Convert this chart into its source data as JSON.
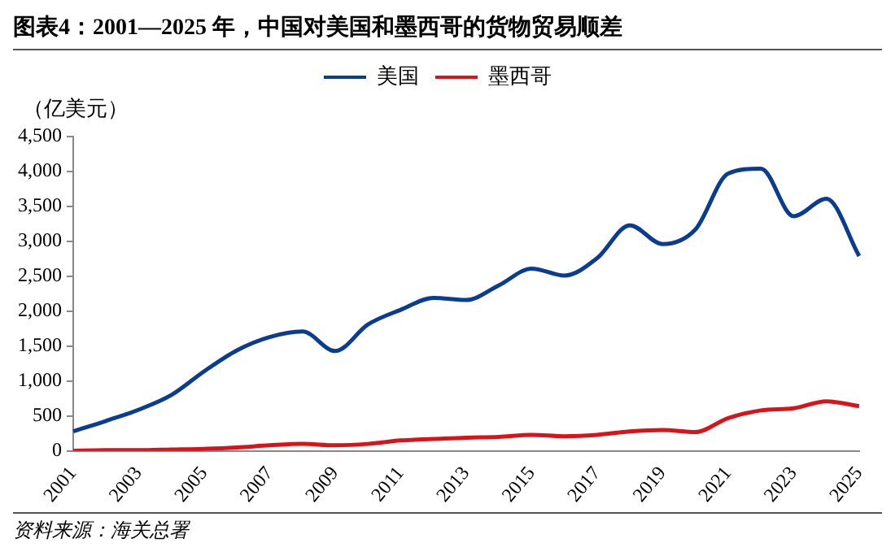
{
  "chart_data": {
    "type": "line",
    "title": "图表4：2001—2025 年，中国对美国和墨西哥的货物贸易顺差",
    "ylabel": "（亿美元）",
    "categories": [
      "2001",
      null,
      "2003",
      null,
      "2005",
      null,
      "2007",
      null,
      "2009",
      null,
      "2011",
      null,
      "2013",
      null,
      "2015",
      null,
      "2017",
      null,
      "2019",
      null,
      "2021",
      null,
      "2023",
      null,
      "2025"
    ],
    "series": [
      {
        "name": "美国",
        "color": "#0a3d8f",
        "values": [
          280,
          430,
          590,
          800,
          1140,
          1440,
          1630,
          1710,
          1430,
          1810,
          2020,
          2190,
          2160,
          2370,
          2610,
          2510,
          2760,
          3230,
          2960,
          3170,
          3970,
          4040,
          3360,
          3610,
          2790
        ]
      },
      {
        "name": "墨西哥",
        "color": "#d7141a",
        "values": [
          0,
          10,
          10,
          20,
          30,
          50,
          80,
          100,
          80,
          100,
          150,
          170,
          190,
          200,
          230,
          210,
          230,
          280,
          300,
          270,
          470,
          580,
          610,
          710,
          640
        ]
      }
    ],
    "ylim": [
      0,
      4500
    ],
    "yticks": [
      0,
      500,
      {
        "value": 1000,
        "label": "1,000"
      },
      {
        "value": 1500,
        "label": "1,500"
      },
      {
        "value": 2000,
        "label": "2,000"
      },
      {
        "value": 2500,
        "label": "2,500"
      },
      {
        "value": 3000,
        "label": "3,000"
      },
      {
        "value": 3500,
        "label": "3,500"
      },
      {
        "value": 4000,
        "label": "4,000"
      },
      {
        "value": 4500,
        "label": "4,500"
      }
    ],
    "grid": false,
    "legend": "top",
    "marker": "none",
    "line_style": "solid",
    "annotations": [
      "资料来源：海关总署"
    ]
  }
}
